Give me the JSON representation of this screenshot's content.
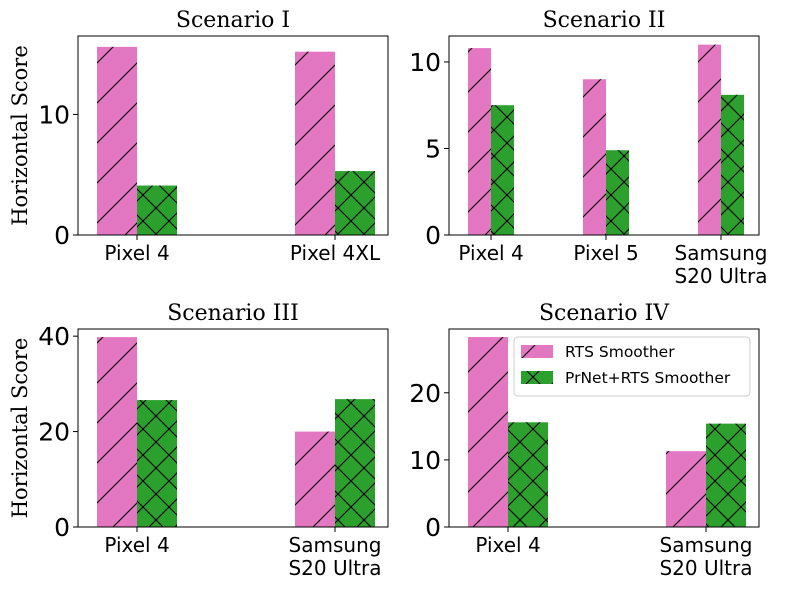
{
  "chart_data": [
    {
      "type": "bar",
      "title": "Scenario I",
      "ylabel": "Horizontal Score",
      "categories": [
        [
          "Pixel 4"
        ],
        [
          "Pixel 4XL"
        ]
      ],
      "ylim": [
        0,
        16.5
      ],
      "yticks": [
        0,
        10
      ],
      "series": [
        {
          "name": "RTS Smoother",
          "values": [
            15.6,
            15.2
          ]
        },
        {
          "name": "PrNet+RTS Smoother",
          "values": [
            4.1,
            5.3
          ]
        }
      ]
    },
    {
      "type": "bar",
      "title": "Scenario II",
      "ylabel": "",
      "categories": [
        [
          "Pixel 4"
        ],
        [
          "Pixel 5"
        ],
        [
          "Samsung",
          "S20 Ultra"
        ]
      ],
      "ylim": [
        0,
        11.5
      ],
      "yticks": [
        0,
        5,
        10
      ],
      "series": [
        {
          "name": "RTS Smoother",
          "values": [
            10.8,
            9.0,
            11.0
          ]
        },
        {
          "name": "PrNet+RTS Smoother",
          "values": [
            7.5,
            4.9,
            8.1
          ]
        }
      ]
    },
    {
      "type": "bar",
      "title": "Scenario III",
      "ylabel": "Horizontal Score",
      "categories": [
        [
          "Pixel 4"
        ],
        [
          "Samsung",
          "S20 Ultra"
        ]
      ],
      "ylim": [
        0,
        41.5
      ],
      "yticks": [
        0,
        20,
        40
      ],
      "series": [
        {
          "name": "RTS Smoother",
          "values": [
            39.8,
            20.0
          ]
        },
        {
          "name": "PrNet+RTS Smoother",
          "values": [
            26.6,
            26.8
          ]
        }
      ]
    },
    {
      "type": "bar",
      "title": "Scenario IV",
      "ylabel": "",
      "categories": [
        [
          "Pixel 4"
        ],
        [
          "Samsung",
          "S20 Ultra"
        ]
      ],
      "ylim": [
        0,
        29.5
      ],
      "yticks": [
        0,
        10,
        20
      ],
      "series": [
        {
          "name": "RTS Smoother",
          "values": [
            28.3,
            11.3
          ]
        },
        {
          "name": "PrNet+RTS Smoother",
          "values": [
            15.6,
            15.4
          ]
        }
      ],
      "legend": {
        "entries": [
          "RTS Smoother",
          "PrNet+RTS Smoother"
        ],
        "location": "upper-right"
      }
    }
  ],
  "colors": {
    "rts": "#e377c2",
    "prnet": "#2ca02c"
  }
}
